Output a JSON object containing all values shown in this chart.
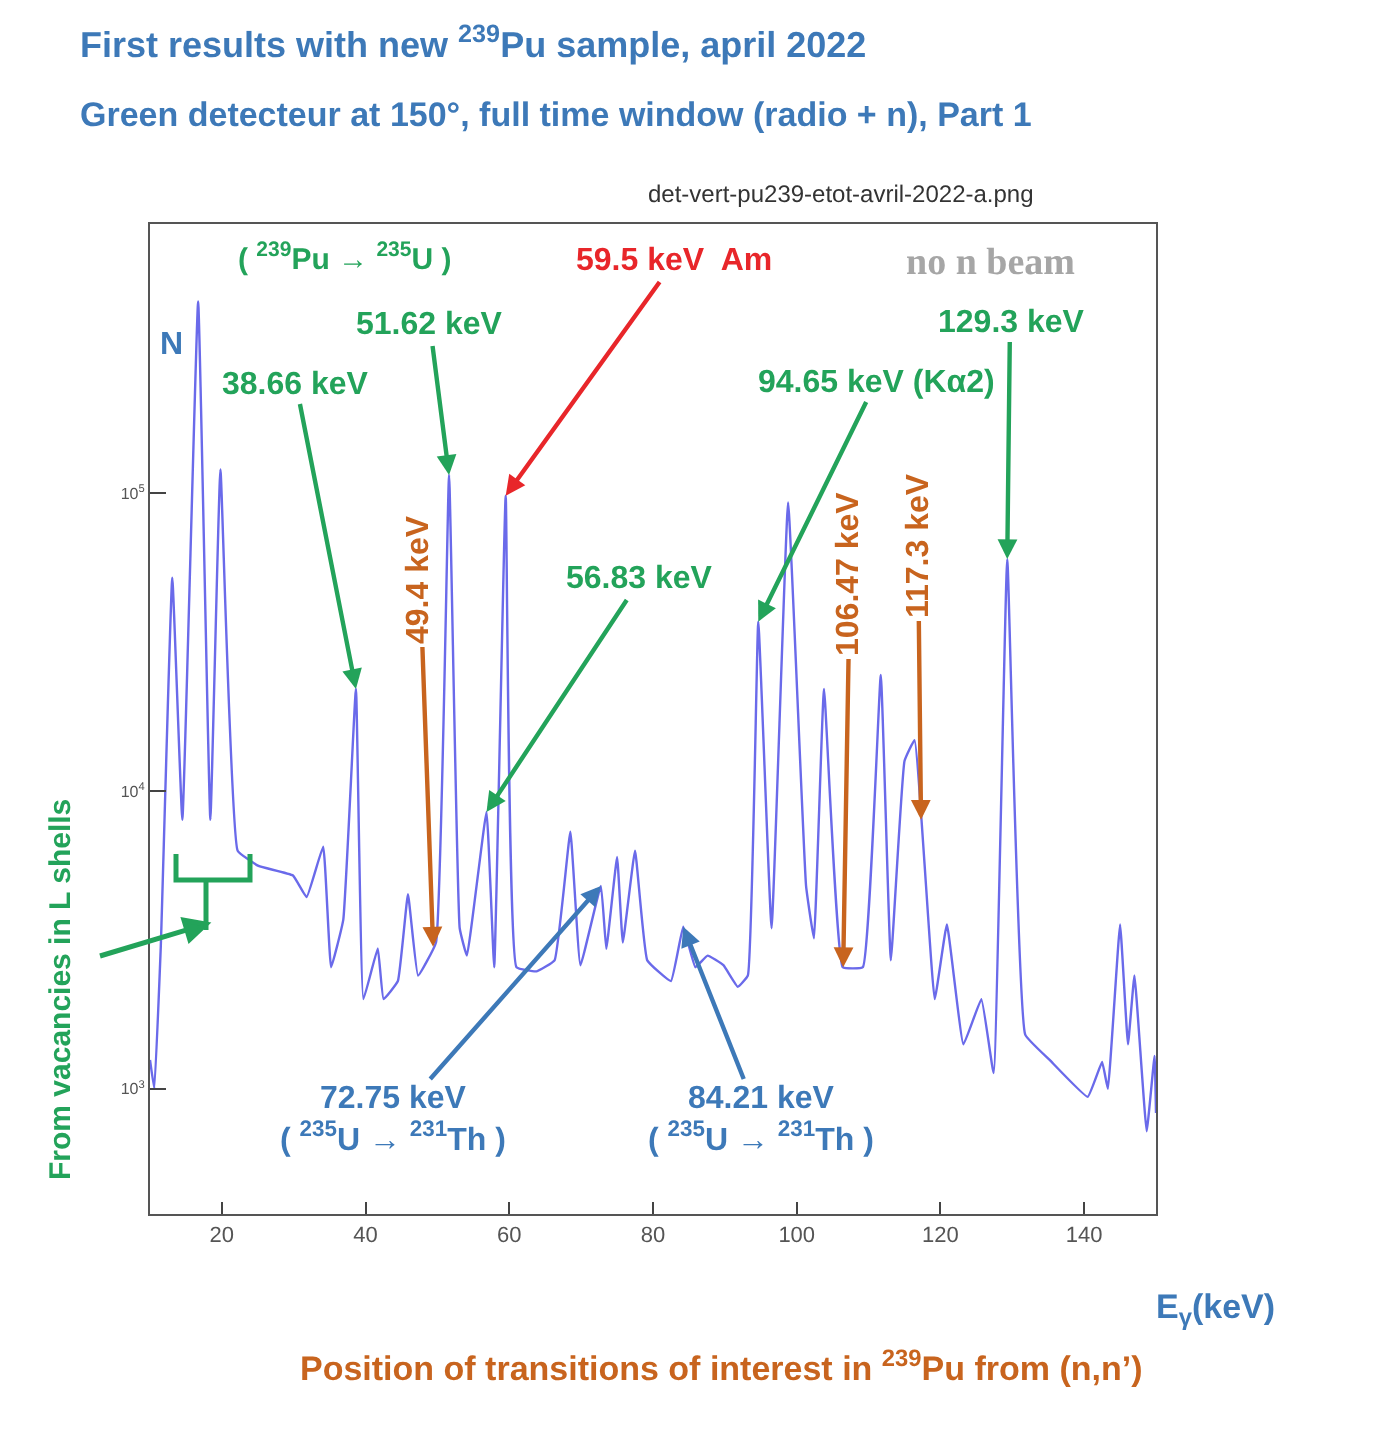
{
  "chart_data": {
    "type": "line",
    "title": "First results with new $^{239}$Pu sample, april 2022",
    "subtitle": "Green detecteur at 150°, full time window (radio + n), Part 1",
    "xlabel": "E$_{γ}$(keV)",
    "ylabel": "N",
    "x": [
      10,
      10.6,
      11.5,
      13.1,
      14.5,
      16.7,
      18.4,
      19.8,
      22.2,
      25.1,
      29.9,
      31.8,
      34.1,
      35.2,
      36.9,
      38.66,
      39.7,
      41.7,
      42.5,
      44.5,
      45.9,
      47.3,
      49.8,
      51.62,
      53.1,
      54.1,
      56.83,
      57.9,
      59.5,
      61.0,
      63.8,
      66.3,
      68.5,
      69.9,
      72.75,
      73.5,
      75.0,
      75.8,
      77.5,
      79.2,
      82.5,
      84.21,
      85.9,
      87.6,
      89.8,
      91.8,
      93.2,
      94.65,
      96.5,
      98.8,
      101.3,
      102.4,
      103.8,
      106.4,
      109.2,
      111.7,
      113.1,
      115.0,
      116.4,
      119.2,
      120.9,
      123.2,
      125.7,
      127.4,
      129.3,
      131.8,
      135.2,
      140.5,
      142.5,
      143.3,
      145.0,
      146.1,
      147.0,
      148.7,
      149.8,
      150
    ],
    "series": [
      {
        "color": "#6a6aea",
        "values": [
          1250,
          1000,
          3000,
          52000,
          8000,
          440000,
          8000,
          120000,
          6300,
          5600,
          5200,
          4400,
          6500,
          2560,
          3700,
          22000,
          2000,
          2960,
          2000,
          2300,
          4500,
          2400,
          3100,
          115000,
          3460,
          2800,
          8500,
          2560,
          98000,
          2560,
          2480,
          2700,
          7300,
          2600,
          4800,
          2950,
          6000,
          3100,
          6300,
          2700,
          2300,
          3500,
          2560,
          2800,
          2600,
          2200,
          2400,
          37000,
          3460,
          93000,
          4800,
          3200,
          22000,
          2560,
          2560,
          24500,
          2700,
          12600,
          14800,
          2000,
          3560,
          1410,
          2000,
          1130,
          60000,
          1520,
          1250,
          940,
          1230,
          1000,
          3560,
          1410,
          2400,
          720,
          1290,
          830
        ]
      }
    ],
    "xlim": [
      10,
      150
    ],
    "ylim": [
      380,
      800000
    ],
    "log": true,
    "xticks": [
      20,
      40,
      60,
      80,
      100,
      120,
      140
    ],
    "yticks": [
      {
        "value": 1000,
        "label": "10$^{3}$"
      },
      {
        "value": 10000,
        "label": "10$^{4}$"
      },
      {
        "value": 100000,
        "label": "10$^{5}$"
      }
    ],
    "annotations": [
      "( $^{239}$Pu → $^{235}$U )",
      {
        "text": "38.66 keV",
        "x": 38.66,
        "y": 22000
      },
      {
        "text": "51.62 keV",
        "x": 51.62,
        "y": 115000
      },
      {
        "text": "59.5 keV  Am",
        "x": 59.5,
        "y": 98000
      },
      "no n beam",
      {
        "text": "56.83 keV",
        "x": 56.83,
        "y": 8500
      },
      {
        "text": "94.65 keV (Kα2)",
        "x": 94.65,
        "y": 37000
      },
      {
        "text": "129.3 keV",
        "x": 129.3,
        "y": 60000
      },
      {
        "text": "49.4 keV",
        "x": 49.4,
        "y": 3000
      },
      {
        "text": "106.47 keV",
        "x": 106.47,
        "y": 2560
      },
      {
        "text": "117.3 keV",
        "x": 117.3,
        "y": 8000
      },
      {
        "text": "72.75 keV\n( $^{235}$U → $^{231}$Th )",
        "x": 72.75,
        "y": 4800
      },
      {
        "text": "84.21 keV\n( $^{235}$U → $^{231}$Th )",
        "x": 84.21,
        "y": 3500
      },
      "From vacancies in L shells",
      "det-vert-pu239-etot-avril-2022-a.png",
      "Position of transitions of interest in $^{239}$Pu from (n,n’)"
    ]
  }
}
